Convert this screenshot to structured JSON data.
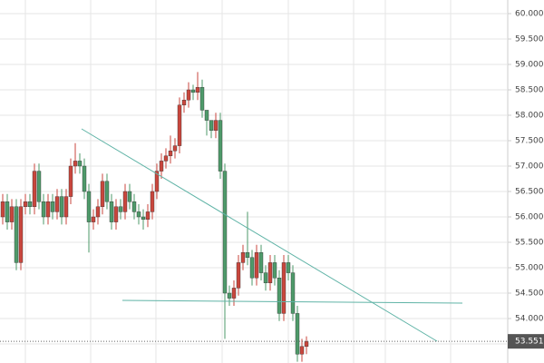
{
  "chart_data": {
    "type": "candlestick",
    "open": [
      56.0,
      56.3,
      55.9,
      56.2,
      55.1,
      56.2,
      56.3,
      56.2,
      56.9,
      56.3,
      56.0,
      56.3,
      56.1,
      56.4,
      56.0,
      56.4,
      57.0,
      57.1,
      57.0,
      56.5,
      55.9,
      56.0,
      56.2,
      56.7,
      56.3,
      55.9,
      56.2,
      56.1,
      56.5,
      56.3,
      56.1,
      56.0,
      55.95,
      56.1,
      56.5,
      56.9,
      57.1,
      57.2,
      57.3,
      57.4,
      58.2,
      58.3,
      58.5,
      58.45,
      58.55,
      58.1,
      57.9,
      57.7,
      57.9,
      56.9,
      54.5,
      54.4,
      54.6,
      55.1,
      55.3,
      55.2,
      54.8,
      55.3,
      54.9,
      54.7,
      55.1,
      54.8,
      54.1,
      55.1,
      54.9,
      54.1,
      53.3,
      53.45
    ],
    "high": [
      56.45,
      56.45,
      56.35,
      56.35,
      56.35,
      56.45,
      56.45,
      57.05,
      57.05,
      56.45,
      56.45,
      56.45,
      56.55,
      56.55,
      56.55,
      57.15,
      57.45,
      57.25,
      57.15,
      56.65,
      56.15,
      56.35,
      56.85,
      56.85,
      56.45,
      56.35,
      56.35,
      56.65,
      56.65,
      56.45,
      56.25,
      56.15,
      56.25,
      56.65,
      57.05,
      57.25,
      57.35,
      57.6,
      57.55,
      58.35,
      58.45,
      58.65,
      58.6,
      58.85,
      58.7,
      58.05,
      57.85,
      58.05,
      58.05,
      57.05,
      54.65,
      54.75,
      55.25,
      55.45,
      56.1,
      55.35,
      55.45,
      55.45,
      55.05,
      55.25,
      55.25,
      54.95,
      55.25,
      55.25,
      55.05,
      54.25,
      53.6,
      53.65
    ],
    "low": [
      55.85,
      55.75,
      55.75,
      54.95,
      54.95,
      56.05,
      56.05,
      56.05,
      56.15,
      55.85,
      55.85,
      55.95,
      55.95,
      55.85,
      55.85,
      56.25,
      56.85,
      56.85,
      56.35,
      55.3,
      55.75,
      55.85,
      56.05,
      56.15,
      55.75,
      55.75,
      55.95,
      55.95,
      56.15,
      55.95,
      55.85,
      55.75,
      55.8,
      55.95,
      56.35,
      56.75,
      56.95,
      57.05,
      57.15,
      57.25,
      58.05,
      58.15,
      58.3,
      58.3,
      57.95,
      57.6,
      57.55,
      57.55,
      56.75,
      53.6,
      54.25,
      54.25,
      54.45,
      54.95,
      55.05,
      54.65,
      54.65,
      54.75,
      54.55,
      54.55,
      54.65,
      53.95,
      53.95,
      54.75,
      53.95,
      53.15,
      53.15,
      53.3
    ],
    "close": [
      56.3,
      55.9,
      56.2,
      55.1,
      56.2,
      56.3,
      56.2,
      56.9,
      56.3,
      56.0,
      56.3,
      56.1,
      56.4,
      56.0,
      56.4,
      57.0,
      57.1,
      57.0,
      56.5,
      55.9,
      56.0,
      56.2,
      56.7,
      56.3,
      55.9,
      56.2,
      56.1,
      56.5,
      56.3,
      56.1,
      56.0,
      55.95,
      56.1,
      56.5,
      56.9,
      57.1,
      57.2,
      57.3,
      57.4,
      58.2,
      58.3,
      58.5,
      58.45,
      58.55,
      58.1,
      57.9,
      57.7,
      57.9,
      56.9,
      54.5,
      54.4,
      54.6,
      55.1,
      55.3,
      55.2,
      54.8,
      55.3,
      54.9,
      54.7,
      55.1,
      54.8,
      54.1,
      55.1,
      54.9,
      54.1,
      53.3,
      53.45,
      53.551
    ],
    "up_color": "#c9463d",
    "down_color": "#4e9a6a",
    "ylim": [
      53.125,
      60.268
    ],
    "yticks": [
      {
        "value": 60,
        "label": "60.000"
      },
      {
        "value": 59.5,
        "label": "59.500"
      },
      {
        "value": 59,
        "label": "59.000"
      },
      {
        "value": 58.5,
        "label": "58.500"
      },
      {
        "value": 58,
        "label": "58.000"
      },
      {
        "value": 57.5,
        "label": "57.500"
      },
      {
        "value": 57,
        "label": "57.000"
      },
      {
        "value": 56.5,
        "label": "56.500"
      },
      {
        "value": 56,
        "label": "56.000"
      },
      {
        "value": 55.5,
        "label": "55.500"
      },
      {
        "value": 55,
        "label": "55.000"
      },
      {
        "value": 54.5,
        "label": "54.500"
      },
      {
        "value": 54,
        "label": "54.000"
      },
      {
        "value": 53.5,
        "label": "53.500"
      }
    ],
    "last_price": 53.551,
    "last_price_label": "53.551",
    "grid": true
  }
}
